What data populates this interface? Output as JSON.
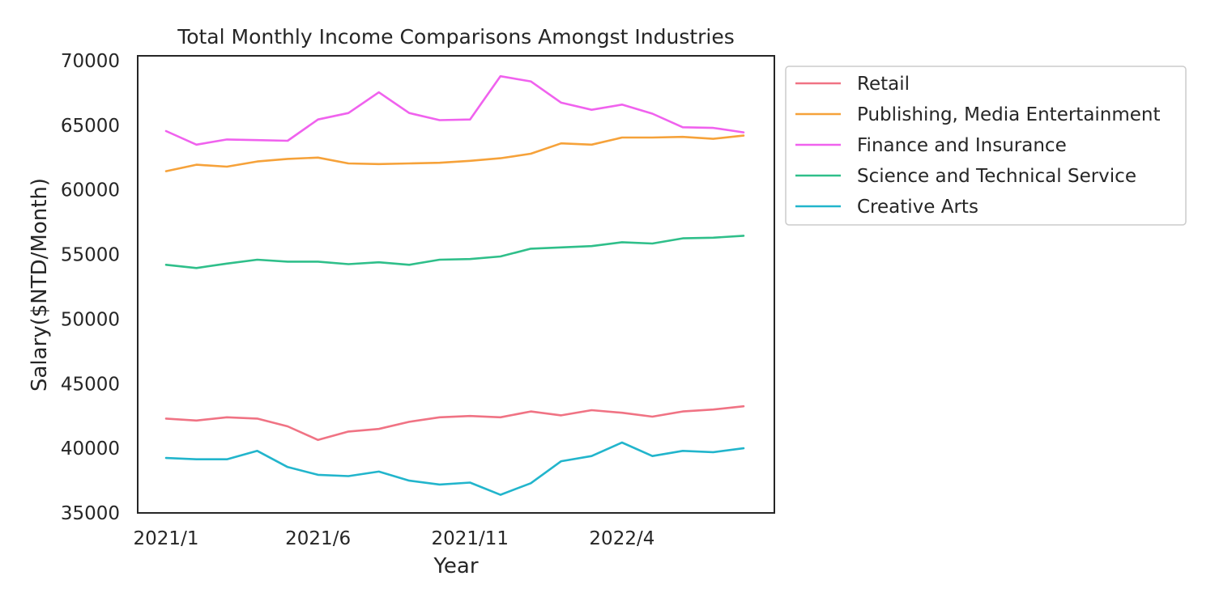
{
  "chart_data": {
    "type": "line",
    "title": "Total Monthly Income Comparisons Amongst Industries",
    "xlabel": "Year",
    "ylabel": "Salary($NTD/Month)",
    "x": [
      "2021/1",
      "2021/2",
      "2021/3",
      "2021/4",
      "2021/5",
      "2021/6",
      "2021/7",
      "2021/8",
      "2021/9",
      "2021/10",
      "2021/11",
      "2021/12",
      "2022/1",
      "2022/2",
      "2022/3",
      "2022/4",
      "2022/5",
      "2022/6",
      "2022/7",
      "2022/8"
    ],
    "xticks": [
      "2021/1",
      "2021/6",
      "2021/11",
      "2022/4"
    ],
    "ylim": [
      35000,
      70000
    ],
    "yticks": [
      "35000",
      "40000",
      "45000",
      "50000",
      "55000",
      "60000",
      "65000",
      "70000"
    ],
    "grid": false,
    "legend_position": "outside-top-right",
    "series": [
      {
        "name": "Retail",
        "color": "#f07384",
        "values": [
          42300,
          42150,
          42400,
          42300,
          41700,
          40650,
          41300,
          41500,
          42050,
          42400,
          42500,
          42400,
          42850,
          42550,
          42950,
          42750,
          42450,
          42850,
          43000,
          43250
        ]
      },
      {
        "name": "Publishing, Media Entertainment",
        "color": "#f6a23a",
        "values": [
          61450,
          61950,
          61800,
          62200,
          62400,
          62500,
          62050,
          62000,
          62050,
          62100,
          62250,
          62450,
          62800,
          63600,
          63500,
          64050,
          64050,
          64100,
          63950,
          64200
        ]
      },
      {
        "name": "Finance and Insurance",
        "color": "#f062ee",
        "values": [
          64550,
          63500,
          63900,
          63850,
          63800,
          65450,
          65950,
          67550,
          65950,
          65400,
          65450,
          68800,
          68400,
          66750,
          66200,
          66600,
          65900,
          64850,
          64800,
          64450
        ]
      },
      {
        "name": "Science and Technical Service",
        "color": "#2fbf8a",
        "values": [
          54200,
          53950,
          54300,
          54600,
          54450,
          54450,
          54250,
          54400,
          54200,
          54600,
          54650,
          54850,
          55450,
          55550,
          55650,
          55950,
          55850,
          56250,
          56300,
          56450
        ]
      },
      {
        "name": "Creative Arts",
        "color": "#22b5cc",
        "values": [
          39250,
          39150,
          39150,
          39800,
          38550,
          37950,
          37850,
          38200,
          37500,
          37200,
          37350,
          36400,
          37300,
          39000,
          39400,
          40450,
          39400,
          39800,
          39700,
          40000
        ]
      }
    ]
  }
}
